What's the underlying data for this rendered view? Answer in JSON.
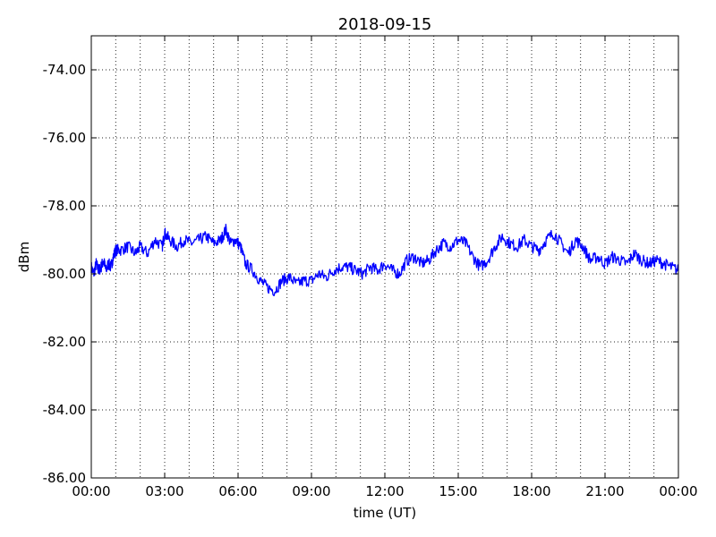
{
  "chart_data": {
    "type": "line",
    "title": "2018-09-15",
    "xlabel": "time (UT)",
    "ylabel": "dBm",
    "xlim": [
      0,
      24
    ],
    "ylim": [
      -86,
      -73
    ],
    "x_ticks": [
      "00:00",
      "03:00",
      "06:00",
      "09:00",
      "12:00",
      "15:00",
      "18:00",
      "21:00",
      "00:00"
    ],
    "x_tick_values": [
      0,
      3,
      6,
      9,
      12,
      15,
      18,
      21,
      24
    ],
    "y_ticks": [
      "-86.00",
      "-84.00",
      "-82.00",
      "-80.00",
      "-78.00",
      "-76.00",
      "-74.00"
    ],
    "y_tick_values": [
      -86,
      -84,
      -82,
      -80,
      -78,
      -76,
      -74
    ],
    "grid": true,
    "grid_x_minor_step": 1,
    "series": [
      {
        "color": "#0000ff",
        "x": [
          0.0,
          0.1,
          0.2,
          0.3,
          0.4,
          0.5,
          0.6,
          0.7,
          0.8,
          0.9,
          1.0,
          1.2,
          1.5,
          1.8,
          2.0,
          2.3,
          2.6,
          2.9,
          3.0,
          3.2,
          3.5,
          3.8,
          4.1,
          4.4,
          4.7,
          5.0,
          5.3,
          5.5,
          5.7,
          5.9,
          6.1,
          6.3,
          6.6,
          6.9,
          7.2,
          7.5,
          7.8,
          8.1,
          8.4,
          8.7,
          9.0,
          9.3,
          9.6,
          9.9,
          10.2,
          10.5,
          10.8,
          11.1,
          11.4,
          11.7,
          12.0,
          12.3,
          12.6,
          12.9,
          13.2,
          13.5,
          13.8,
          14.1,
          14.4,
          14.7,
          15.0,
          15.3,
          15.6,
          15.9,
          16.2,
          16.5,
          16.8,
          17.1,
          17.4,
          17.7,
          18.0,
          18.3,
          18.6,
          18.9,
          19.2,
          19.5,
          19.8,
          20.1,
          20.4,
          20.7,
          21.0,
          21.3,
          21.6,
          21.9,
          22.2,
          22.5,
          22.8,
          23.1,
          23.4,
          23.7,
          24.0
        ],
        "values": [
          -79.8,
          -80.0,
          -79.7,
          -79.9,
          -79.8,
          -79.6,
          -79.9,
          -79.7,
          -79.8,
          -79.5,
          -79.3,
          -79.3,
          -79.2,
          -79.4,
          -79.2,
          -79.4,
          -79.0,
          -79.2,
          -78.8,
          -79.0,
          -79.2,
          -79.0,
          -79.1,
          -79.0,
          -78.9,
          -79.1,
          -79.0,
          -78.7,
          -79.1,
          -79.0,
          -79.2,
          -79.7,
          -79.9,
          -80.2,
          -80.4,
          -80.5,
          -80.2,
          -80.1,
          -80.3,
          -80.2,
          -80.2,
          -80.0,
          -80.1,
          -79.9,
          -79.8,
          -79.8,
          -79.9,
          -80.0,
          -79.8,
          -79.9,
          -79.7,
          -79.9,
          -80.0,
          -79.6,
          -79.5,
          -79.7,
          -79.6,
          -79.3,
          -79.1,
          -79.2,
          -79.0,
          -79.1,
          -79.5,
          -79.8,
          -79.6,
          -79.2,
          -78.9,
          -79.1,
          -79.2,
          -79.0,
          -79.2,
          -79.3,
          -79.0,
          -78.8,
          -79.1,
          -79.4,
          -79.0,
          -79.2,
          -79.6,
          -79.5,
          -79.7,
          -79.5,
          -79.6,
          -79.7,
          -79.4,
          -79.6,
          -79.7,
          -79.6,
          -79.7,
          -79.8,
          -79.9
        ]
      }
    ]
  }
}
